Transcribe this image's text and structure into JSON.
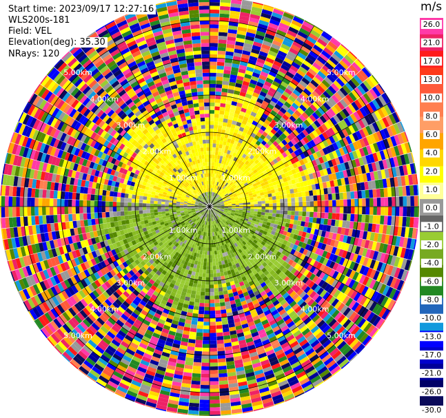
{
  "header": {
    "start_time": "Start time: 2023/09/17 12:27:16",
    "station": "WLS200s-181",
    "field": "Field: VEL",
    "elevation": "Elevation(deg): 35.30",
    "nrays": "NRays: 120"
  },
  "chart_data": {
    "type": "ppi_polar",
    "field": "VEL",
    "unit": "m/s",
    "nrays": 120,
    "range_ring_labels_km": [
      1.0,
      2.0,
      3.0,
      4.0,
      5.0
    ],
    "range_ring_labels": [
      "1.00km",
      "2.00km",
      "3.00km",
      "4.00km",
      "5.00km"
    ],
    "colorbar_ticks": [
      "26.0",
      "21.0",
      "17.0",
      "13.0",
      "10.0",
      "8.0",
      "6.0",
      "4.0",
      "2.0",
      "1.0",
      "0.0",
      "-1.0",
      "-2.0",
      "-4.0",
      "-6.0",
      "-8.0",
      "-10.0",
      "-13.0",
      "-17.0",
      "-21.0",
      "-26.0",
      "-30.0"
    ],
    "colorbar_colors": [
      "#ff3aa8",
      "#ee2266",
      "#ff1a1a",
      "#ff3a1a",
      "#ff5a3a",
      "#ff7f50",
      "#ff9e66",
      "#ffa500",
      "#ffd700",
      "#ffff00",
      "#ffff99",
      "#999999",
      "#666666",
      "#99cc33",
      "#77aa22",
      "#558800",
      "#228822",
      "#2266bb",
      "#1199dd",
      "#0000ff",
      "#0000cc",
      "#000099",
      "#000066",
      "#0b0b5a"
    ],
    "clean_range_km": 2.6,
    "north_velocity": "positive (yellow)",
    "south_velocity": "negative (green)"
  }
}
